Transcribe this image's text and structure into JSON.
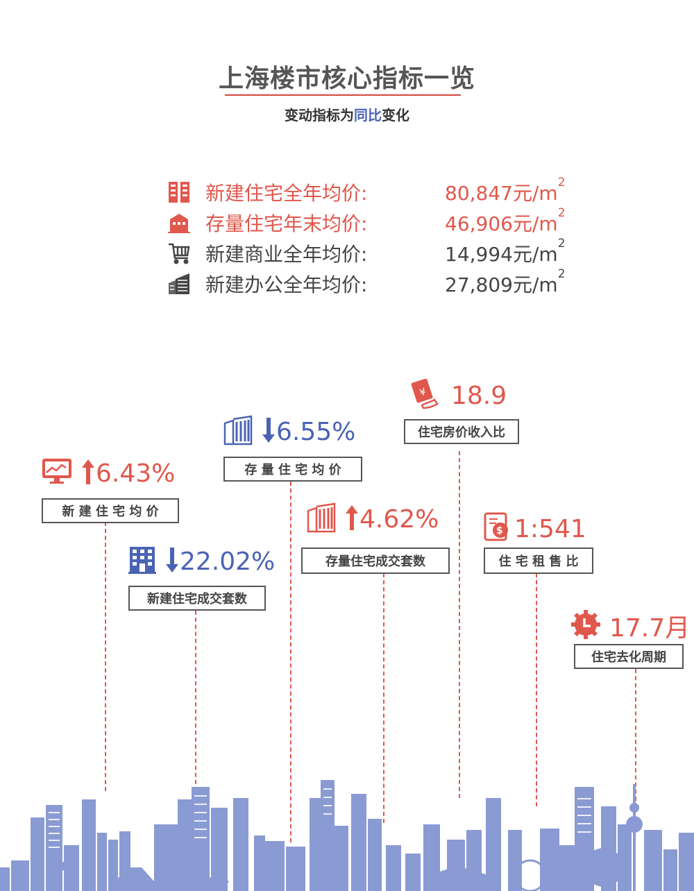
{
  "title": "上海楼市核心指标一览",
  "subtitle": {
    "before": "变动指标为",
    "highlight": "同比",
    "after": "变化"
  },
  "stats": [
    {
      "icon": "building-icon",
      "label": "新建住宅全年均价:",
      "value": "80,847元/m",
      "sup": "2",
      "color": "#e0574c"
    },
    {
      "icon": "house-icon",
      "label": "存量住宅年末均价:",
      "value": "46,906元/m",
      "sup": "2",
      "color": "#e0574c"
    },
    {
      "icon": "shopping-cart-icon",
      "label": "新建商业全年均价:",
      "value": "14,994元/m",
      "sup": "2",
      "color": "#444444"
    },
    {
      "icon": "office-building-icon",
      "label": "新建办公全年均价:",
      "value": "27,809元/m",
      "sup": "2",
      "color": "#444444"
    }
  ],
  "metrics": {
    "new_home_price": {
      "value": "6.43%",
      "label": "新 建 住 宅 均 价",
      "direction": "up",
      "icon": "chart-monitor-icon"
    },
    "new_home_deals": {
      "value": "22.02%",
      "label": "新建住宅成交套数",
      "direction": "down",
      "icon": "apartment-icon"
    },
    "resale_price": {
      "value": "6.55%",
      "label": "存 量 住 宅 均 价",
      "direction": "down",
      "icon": "building-icon"
    },
    "resale_deals": {
      "value": "4.62%",
      "label": "存量住宅成交套数",
      "direction": "up",
      "icon": "building-icon"
    },
    "price_income": {
      "value": "18.9",
      "label": "住宅房价收入比",
      "icon": "money-hand-icon"
    },
    "rent_sale": {
      "value": "1:541",
      "label": "住 宅 租 售 比",
      "icon": "contract-icon"
    },
    "destock": {
      "value": "17.7月",
      "label": "住宅去化周期",
      "icon": "clock-gear-icon"
    }
  },
  "colors": {
    "red": "#e0574c",
    "blue": "#4a63b5",
    "skyline": "#7e8fcf",
    "gray": "#555555"
  }
}
